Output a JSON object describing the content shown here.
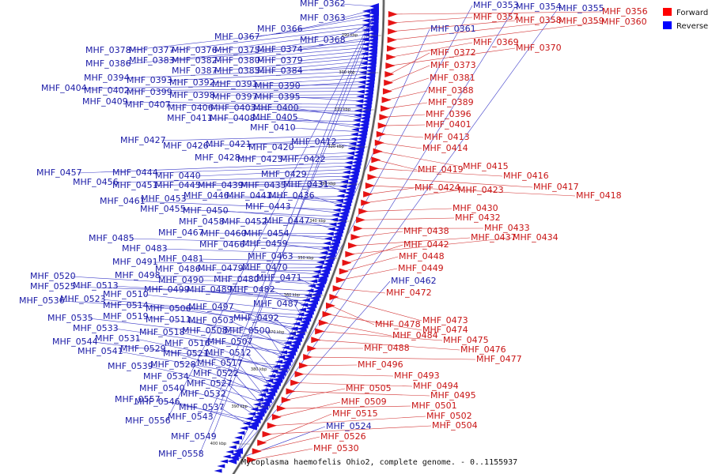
{
  "caption": "Mycoplasma haemofelis Ohio2, complete genome. - 0..1155937",
  "legend": [
    {
      "label": "Forward",
      "color": "#ff0000"
    },
    {
      "label": "Reverse",
      "color": "#0000ff"
    }
  ],
  "ticks": [
    "290 kbp",
    "300 kbp",
    "310 kbp",
    "320 kbp",
    "330 kbp",
    "340 kbp",
    "350 kbp",
    "360 kbp",
    "370 kbp",
    "380 kbp",
    "390 kbp",
    "400 kbp"
  ],
  "reverse_labels": [
    "MHF_0362",
    "MHF_0363",
    "MHF_0366",
    "MHF_0367",
    "MHF_0368",
    "MHF_0378",
    "MHF_0377",
    "MHF_0376",
    "MHF_0375",
    "MHF_0374",
    "MHF_0386",
    "MHF_0383",
    "MHF_0382",
    "MHF_0380",
    "MHF_0379",
    "MHF_0387",
    "MHF_0385",
    "MHF_0384",
    "MHF_0394",
    "MHF_0393",
    "MHF_0392",
    "MHF_0391",
    "MHF_0390",
    "MHF_0404",
    "MHF_0402",
    "MHF_0399",
    "MHF_0398",
    "MHF_0397",
    "MHF_0395",
    "MHF_0409",
    "MHF_0407",
    "MHF_0406",
    "MHF_0403",
    "MHF_0400",
    "MHF_0411",
    "MHF_0408",
    "MHF_0405",
    "MHF_0410",
    "MHF_0427",
    "MHF_0426",
    "MHF_0421",
    "MHF_0420",
    "MHF_0412",
    "MHF_0428",
    "MHF_0425",
    "MHF_0422",
    "MHF_0457",
    "MHF_0444",
    "MHF_0440",
    "MHF_0429",
    "MHF_0456",
    "MHF_0451",
    "MHF_0445",
    "MHF_0439",
    "MHF_0435",
    "MHF_0431",
    "MHF_0453",
    "MHF_0446",
    "MHF_0441",
    "MHF_0436",
    "MHF_0461",
    "MHF_0443",
    "MHF_0455",
    "MHF_0450",
    "MHF_0458",
    "MHF_0452",
    "MHF_0447",
    "MHF_0467",
    "MHF_0460",
    "MHF_0454",
    "MHF_0485",
    "MHF_0466",
    "MHF_0459",
    "MHF_0483",
    "MHF_0463",
    "MHF_0481",
    "MHF_0491",
    "MHF_0470",
    "MHF_0486",
    "MHF_0479",
    "MHF_0498",
    "MHF_0490",
    "MHF_0480",
    "MHF_0471",
    "MHF_0520",
    "MHF_0525",
    "MHF_0513",
    "MHF_0499",
    "MHF_0489",
    "MHF_0482",
    "MHF_0510",
    "MHF_0536",
    "MHF_0523",
    "MHF_0487",
    "MHF_0514",
    "MHF_0506",
    "MHF_0497",
    "MHF_0519",
    "MHF_0492",
    "MHF_0535",
    "MHF_0511",
    "MHF_0503",
    "MHF_0533",
    "MHF_0518",
    "MHF_0508",
    "MHF_0500",
    "MHF_0544",
    "MHF_0531",
    "MHF_0516",
    "MHF_0507",
    "MHF_0541",
    "MHF_0529",
    "MHF_0521",
    "MHF_0512",
    "MHF_0539",
    "MHF_0528",
    "MHF_0517",
    "MHF_0534",
    "MHF_0522",
    "MHF_0540",
    "MHF_0527",
    "MHF_0532",
    "MHF_0557",
    "MHF_0546",
    "MHF_0537",
    "MHF_0543",
    "MHF_0556",
    "MHF_0549",
    "MHF_0558",
    "MHF_0353",
    "MHF_0354",
    "MHF_0355",
    "MHF_0361",
    "MHF_0462",
    "MHF_0524"
  ],
  "forward_labels": [
    "MHF_0356",
    "MHF_0357",
    "MHF_0358",
    "MHF_0359",
    "MHF_0360",
    "MHF_0369",
    "MHF_0370",
    "MHF_0372",
    "MHF_0373",
    "MHF_0381",
    "MHF_0388",
    "MHF_0389",
    "MHF_0396",
    "MHF_0401",
    "MHF_0413",
    "MHF_0414",
    "MHF_0415",
    "MHF_0419",
    "MHF_0416",
    "MHF_0417",
    "MHF_0418",
    "MHF_0424",
    "MHF_0423",
    "MHF_0430",
    "MHF_0432",
    "MHF_0433",
    "MHF_0438",
    "MHF_0437",
    "MHF_0434",
    "MHF_0442",
    "MHF_0448",
    "MHF_0449",
    "MHF_0472",
    "MHF_0473",
    "MHF_0478",
    "MHF_0474",
    "MHF_0484",
    "MHF_0475",
    "MHF_0476",
    "MHF_0488",
    "MHF_0477",
    "MHF_0496",
    "MHF_0493",
    "MHF_0494",
    "MHF_0495",
    "MHF_0505",
    "MHF_0501",
    "MHF_0509",
    "MHF_0502",
    "MHF_0504",
    "MHF_0515",
    "MHF_0526",
    "MHF_0530"
  ]
}
